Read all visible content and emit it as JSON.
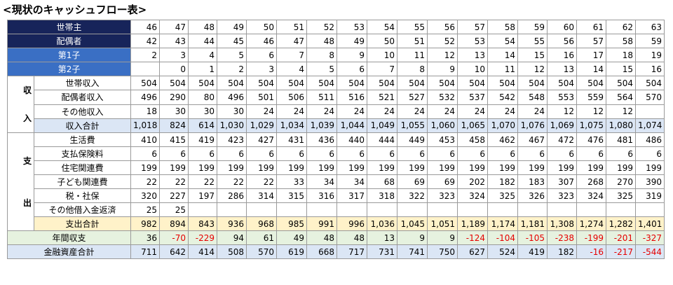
{
  "title": "<現状のキャッシュフロー表>",
  "rows": [
    {
      "key": "head",
      "label": "世帯主",
      "values": [
        "46",
        "47",
        "48",
        "49",
        "50",
        "51",
        "52",
        "53",
        "54",
        "55",
        "56",
        "57",
        "58",
        "59",
        "60",
        "61",
        "62",
        "63"
      ]
    },
    {
      "key": "spouse",
      "label": "配偶者",
      "values": [
        "42",
        "43",
        "44",
        "45",
        "46",
        "47",
        "48",
        "49",
        "50",
        "51",
        "52",
        "53",
        "54",
        "55",
        "56",
        "57",
        "58",
        "59"
      ]
    },
    {
      "key": "child1",
      "label": "第1子",
      "values": [
        "2",
        "3",
        "4",
        "5",
        "6",
        "7",
        "8",
        "9",
        "10",
        "11",
        "12",
        "13",
        "14",
        "15",
        "16",
        "17",
        "18",
        "19"
      ]
    },
    {
      "key": "child2",
      "label": "第2子",
      "values": [
        "",
        "0",
        "1",
        "2",
        "3",
        "4",
        "5",
        "6",
        "7",
        "8",
        "9",
        "10",
        "11",
        "12",
        "13",
        "14",
        "15",
        "16"
      ]
    },
    {
      "key": "income_head",
      "label": "世帯収入",
      "values": [
        "504",
        "504",
        "504",
        "504",
        "504",
        "504",
        "504",
        "504",
        "504",
        "504",
        "504",
        "504",
        "504",
        "504",
        "504",
        "504",
        "504",
        "504"
      ]
    },
    {
      "key": "income_spouse",
      "label": "配偶者収入",
      "values": [
        "496",
        "290",
        "80",
        "496",
        "501",
        "506",
        "511",
        "516",
        "521",
        "527",
        "532",
        "537",
        "542",
        "548",
        "553",
        "559",
        "564",
        "570"
      ]
    },
    {
      "key": "income_other",
      "label": "その他収入",
      "values": [
        "18",
        "30",
        "30",
        "30",
        "24",
        "24",
        "24",
        "24",
        "24",
        "24",
        "24",
        "24",
        "24",
        "24",
        "12",
        "12",
        "12",
        ""
      ]
    },
    {
      "key": "income_total",
      "label": "収入合計",
      "values": [
        "1,018",
        "824",
        "614",
        "1,030",
        "1,029",
        "1,034",
        "1,039",
        "1,044",
        "1,049",
        "1,055",
        "1,060",
        "1,065",
        "1,070",
        "1,076",
        "1,069",
        "1,075",
        "1,080",
        "1,074"
      ]
    },
    {
      "key": "living",
      "label": "生活費",
      "values": [
        "410",
        "415",
        "419",
        "423",
        "427",
        "431",
        "436",
        "440",
        "444",
        "449",
        "453",
        "458",
        "462",
        "467",
        "472",
        "476",
        "481",
        "486"
      ]
    },
    {
      "key": "insurance",
      "label": "支払保険料",
      "values": [
        "6",
        "6",
        "6",
        "6",
        "6",
        "6",
        "6",
        "6",
        "6",
        "6",
        "6",
        "6",
        "6",
        "6",
        "6",
        "6",
        "6",
        "6"
      ]
    },
    {
      "key": "housing",
      "label": "住宅関連費",
      "values": [
        "199",
        "199",
        "199",
        "199",
        "199",
        "199",
        "199",
        "199",
        "199",
        "199",
        "199",
        "199",
        "199",
        "199",
        "199",
        "199",
        "199",
        "199"
      ]
    },
    {
      "key": "children",
      "label": "子ども関連費",
      "values": [
        "22",
        "22",
        "22",
        "22",
        "22",
        "33",
        "34",
        "34",
        "68",
        "69",
        "69",
        "202",
        "182",
        "183",
        "307",
        "268",
        "270",
        "390"
      ]
    },
    {
      "key": "tax",
      "label": "税・社保",
      "values": [
        "320",
        "227",
        "197",
        "286",
        "314",
        "315",
        "316",
        "317",
        "318",
        "322",
        "323",
        "324",
        "325",
        "326",
        "323",
        "324",
        "325",
        "319"
      ]
    },
    {
      "key": "loan",
      "label": "その他借入金返済",
      "values": [
        "25",
        "25",
        "",
        "",
        "",
        "",
        "",
        "",
        "",
        "",
        "",
        "",
        "",
        "",
        "",
        "",
        "",
        ""
      ]
    },
    {
      "key": "expense_total",
      "label": "支出合計",
      "values": [
        "982",
        "894",
        "843",
        "936",
        "968",
        "985",
        "991",
        "996",
        "1,036",
        "1,045",
        "1,051",
        "1,189",
        "1,174",
        "1,181",
        "1,308",
        "1,274",
        "1,282",
        "1,401"
      ]
    },
    {
      "key": "annual",
      "label": "年間収支",
      "values": [
        "36",
        "-70",
        "-229",
        "94",
        "61",
        "49",
        "48",
        "48",
        "13",
        "9",
        "9",
        "-124",
        "-104",
        "-105",
        "-238",
        "-199",
        "-201",
        "-327"
      ]
    },
    {
      "key": "assets",
      "label": "金融資産合計",
      "values": [
        "711",
        "642",
        "414",
        "508",
        "570",
        "619",
        "668",
        "717",
        "731",
        "741",
        "750",
        "627",
        "524",
        "419",
        "182",
        "-16",
        "-217",
        "-544"
      ]
    }
  ],
  "side_income": [
    "収",
    "入"
  ],
  "side_expense": [
    "支",
    "出"
  ],
  "colors": {
    "dark": "#17245a",
    "blue": "#3a6fc4",
    "lightblue": "#dbe6f5",
    "yellow": "#fff2c9",
    "green": "#e6f2df",
    "negative": "#e60000"
  }
}
